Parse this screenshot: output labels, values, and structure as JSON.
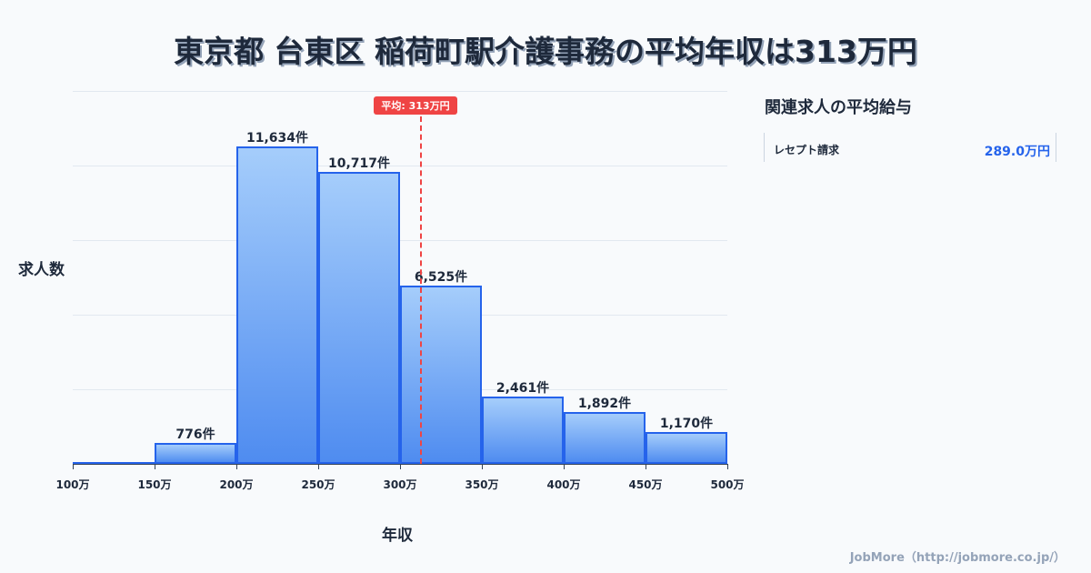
{
  "title": "東京都 台東区 稲荷町駅介護事務の平均年収は313万円",
  "mean_badge": "平均: 313万円",
  "ylabel": "求人数",
  "xlabel": "年収",
  "side_panel": {
    "title": "関連求人の平均給与",
    "items": [
      {
        "name": "レセプト請求",
        "value": "289.0万円"
      }
    ]
  },
  "footer": "JobMore（http://jobmore.co.jp/）",
  "colors": {
    "bar_border": "#2563eb",
    "bar_top": "#a5cdfb",
    "bar_bottom": "#4f8cf0",
    "mean": "#ef4444",
    "accent": "#2563eb"
  },
  "chart_data": {
    "type": "bar",
    "title": "東京都 台東区 稲荷町駅介護事務の平均年収は313万円",
    "xlabel": "年収",
    "ylabel": "求人数",
    "categories": [
      "100-150万",
      "150-200万",
      "200-250万",
      "250-300万",
      "300-350万",
      "350-400万",
      "400-450万",
      "450-500万"
    ],
    "values": [
      0,
      776,
      11634,
      10717,
      6525,
      2461,
      1892,
      1170
    ],
    "value_labels": [
      "",
      "776件",
      "11,634件",
      "10,717件",
      "6,525件",
      "2,461件",
      "1,892件",
      "1,170件"
    ],
    "x_ticks": [
      "100万",
      "150万",
      "200万",
      "250万",
      "300万",
      "350万",
      "400万",
      "450万",
      "500万"
    ],
    "mean": 313,
    "mean_label": "平均: 313万円",
    "xlim": [
      100,
      500
    ],
    "ylim": [
      0,
      13668
    ],
    "grid": true,
    "legend": null
  }
}
